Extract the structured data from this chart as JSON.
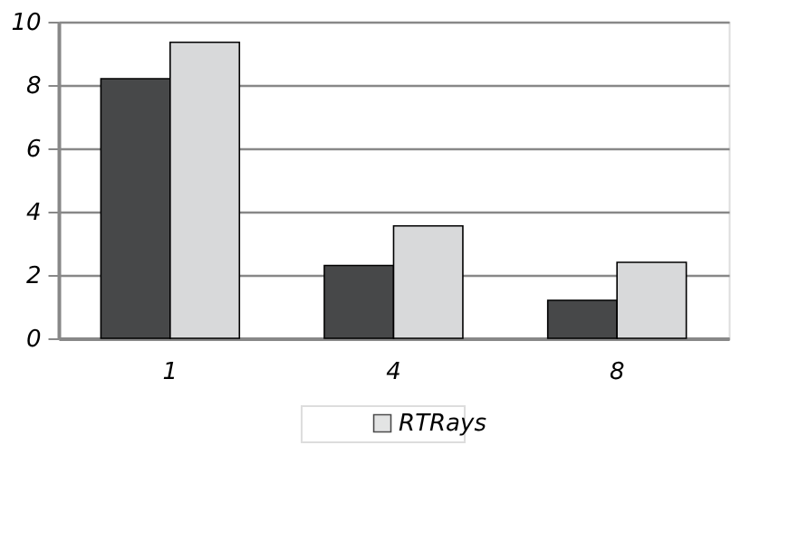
{
  "chart_data": {
    "type": "bar",
    "categories": [
      "1",
      "4",
      "8"
    ],
    "series": [
      {
        "color": "#474849",
        "values": [
          8.2,
          2.3,
          1.2
        ]
      },
      {
        "name": "RTRays",
        "color": "#d8d9da",
        "values": [
          9.35,
          3.55,
          2.4
        ]
      }
    ],
    "ylim": [
      0,
      10
    ],
    "yticks": [
      0,
      2,
      4,
      6,
      8,
      10
    ],
    "grid": "y",
    "legend": "bottom"
  }
}
